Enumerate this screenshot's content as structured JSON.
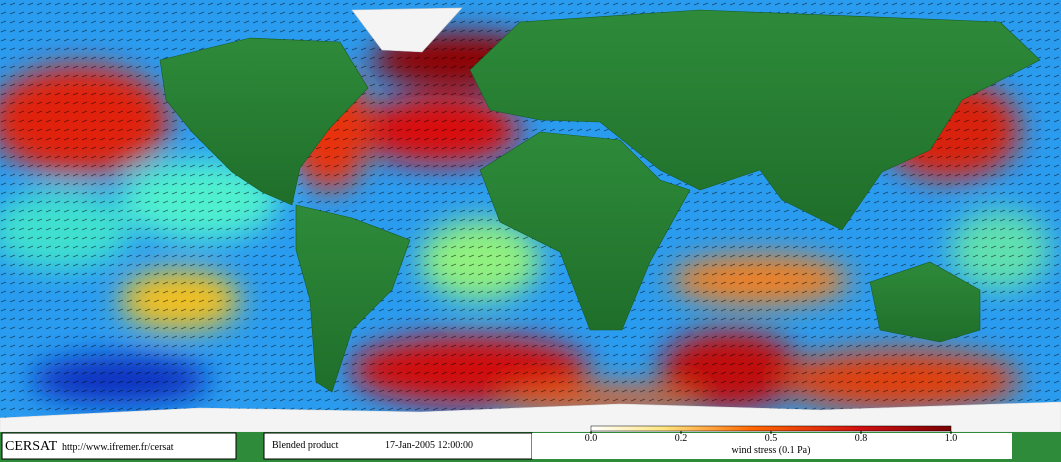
{
  "footer": {
    "logo": "CERSAT",
    "url": "http://www.ifremer.fr/cersat",
    "product": "Blended product",
    "date": "17-Jan-2005 12:00:00"
  },
  "colorbar": {
    "label": "wind stress (0.1 Pa)",
    "ticks": [
      {
        "value": 0,
        "label": "0.0"
      },
      {
        "value": 0.2,
        "label": "0.2"
      },
      {
        "value": 0.5,
        "label": "0.5"
      },
      {
        "value": 0.8,
        "label": "0.8"
      },
      {
        "value": 1,
        "label": "1.0"
      }
    ]
  }
}
